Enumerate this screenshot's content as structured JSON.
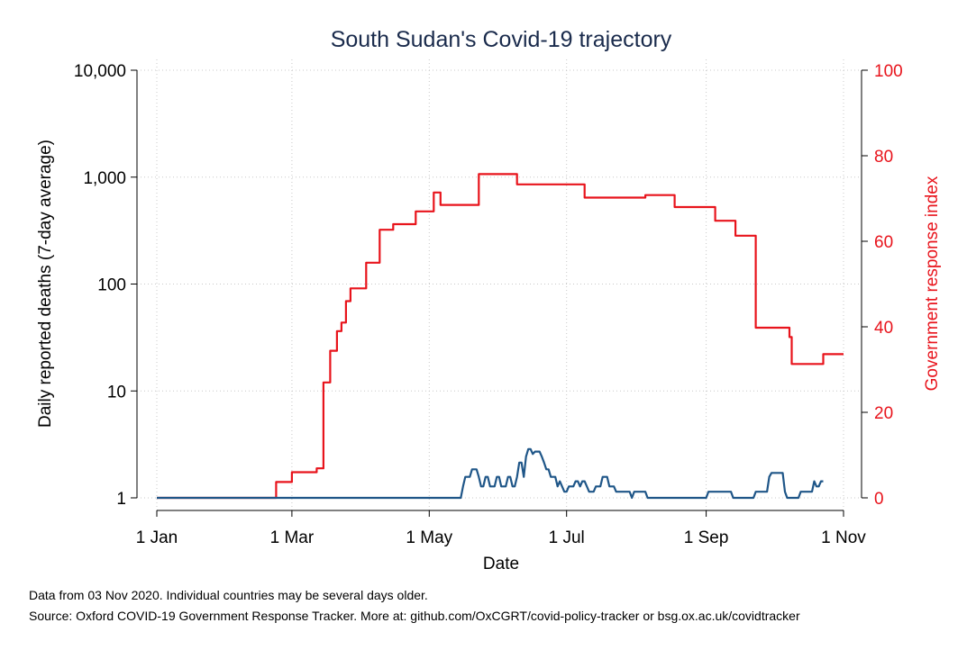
{
  "chart_data": {
    "type": "line",
    "title": "South Sudan's Covid-19 trajectory",
    "xlabel": "Date",
    "ylabel_left": "Daily reported deaths (7-day average)",
    "ylabel_right": "Government response index",
    "x_ticks": [
      {
        "label": "1 Jan",
        "day": 0
      },
      {
        "label": "1 Mar",
        "day": 60
      },
      {
        "label": "1 May",
        "day": 121
      },
      {
        "label": "1 Jul",
        "day": 182
      },
      {
        "label": "1 Sep",
        "day": 244
      },
      {
        "label": "1 Nov",
        "day": 305
      }
    ],
    "x_range_days": [
      0,
      307
    ],
    "y_left_scale": "log",
    "y_left_ticks": [
      {
        "label": "1",
        "value": 1
      },
      {
        "label": "10",
        "value": 10
      },
      {
        "label": "100",
        "value": 100
      },
      {
        "label": "1,000",
        "value": 1000
      },
      {
        "label": "10,000",
        "value": 10000
      }
    ],
    "y_left_range": [
      1,
      10000
    ],
    "y_right_ticks": [
      {
        "label": "0",
        "value": 0
      },
      {
        "label": "20",
        "value": 20
      },
      {
        "label": "40",
        "value": 40
      },
      {
        "label": "60",
        "value": 60
      },
      {
        "label": "80",
        "value": 80
      },
      {
        "label": "100",
        "value": 100
      }
    ],
    "y_right_range": [
      0,
      100
    ],
    "grid": true,
    "series": [
      {
        "axis": "right",
        "color": "#e8141c",
        "points": [
          [
            0,
            0
          ],
          [
            53,
            0
          ],
          [
            53,
            3.7
          ],
          [
            60,
            3.7
          ],
          [
            60,
            6
          ],
          [
            71,
            6
          ],
          [
            71,
            6.9
          ],
          [
            74,
            6.9
          ],
          [
            74,
            27
          ],
          [
            77,
            27
          ],
          [
            77,
            34.4
          ],
          [
            80,
            34.4
          ],
          [
            80,
            39
          ],
          [
            82,
            39
          ],
          [
            82,
            41
          ],
          [
            84,
            41
          ],
          [
            84,
            46
          ],
          [
            86,
            46
          ],
          [
            86,
            49
          ],
          [
            93,
            49
          ],
          [
            93,
            55
          ],
          [
            99,
            55
          ],
          [
            99,
            62.7
          ],
          [
            105,
            62.7
          ],
          [
            105,
            64
          ],
          [
            108,
            64
          ],
          [
            108,
            64
          ],
          [
            115,
            64
          ],
          [
            115,
            67
          ],
          [
            123,
            67
          ],
          [
            123,
            71.4
          ],
          [
            126,
            71.4
          ],
          [
            126,
            68.5
          ],
          [
            143,
            68.5
          ],
          [
            143,
            75.7
          ],
          [
            160,
            75.7
          ],
          [
            160,
            73.3
          ],
          [
            190,
            73.3
          ],
          [
            190,
            70.2
          ],
          [
            217,
            70.2
          ],
          [
            217,
            70.8
          ],
          [
            230,
            70.8
          ],
          [
            230,
            68
          ],
          [
            248,
            68
          ],
          [
            248,
            64.8
          ],
          [
            257,
            64.8
          ],
          [
            257,
            61.3
          ],
          [
            266,
            61.3
          ],
          [
            266,
            39.8
          ],
          [
            281,
            39.8
          ],
          [
            281,
            37.6
          ],
          [
            282,
            37.6
          ],
          [
            282,
            31.3
          ],
          [
            296,
            31.3
          ],
          [
            296,
            33.6
          ],
          [
            305,
            33.6
          ]
        ]
      },
      {
        "axis": "left",
        "color": "#1f5688",
        "points": [
          [
            0,
            1
          ],
          [
            135,
            1
          ],
          [
            136,
            1.28
          ],
          [
            137,
            1.57
          ],
          [
            138,
            1.57
          ],
          [
            139,
            1.57
          ],
          [
            140,
            1.85
          ],
          [
            141,
            1.85
          ],
          [
            142,
            1.85
          ],
          [
            143,
            1.57
          ],
          [
            144,
            1.28
          ],
          [
            145,
            1.28
          ],
          [
            146,
            1.57
          ],
          [
            147,
            1.57
          ],
          [
            148,
            1.28
          ],
          [
            149,
            1.28
          ],
          [
            150,
            1.28
          ],
          [
            151,
            1.57
          ],
          [
            152,
            1.57
          ],
          [
            153,
            1.28
          ],
          [
            154,
            1.28
          ],
          [
            155,
            1.28
          ],
          [
            156,
            1.57
          ],
          [
            157,
            1.57
          ],
          [
            158,
            1.28
          ],
          [
            159,
            1.28
          ],
          [
            160,
            1.57
          ],
          [
            161,
            2.14
          ],
          [
            162,
            2.14
          ],
          [
            163,
            1.57
          ],
          [
            164,
            2.43
          ],
          [
            165,
            2.86
          ],
          [
            166,
            2.86
          ],
          [
            167,
            2.57
          ],
          [
            168,
            2.71
          ],
          [
            169,
            2.71
          ],
          [
            170,
            2.71
          ],
          [
            171,
            2.43
          ],
          [
            172,
            2.14
          ],
          [
            173,
            1.85
          ],
          [
            174,
            1.85
          ],
          [
            175,
            1.57
          ],
          [
            176,
            1.57
          ],
          [
            177,
            1.57
          ],
          [
            178,
            1.28
          ],
          [
            179,
            1.43
          ],
          [
            180,
            1.28
          ],
          [
            181,
            1.14
          ],
          [
            182,
            1.14
          ],
          [
            183,
            1.28
          ],
          [
            184,
            1.28
          ],
          [
            185,
            1.28
          ],
          [
            186,
            1.43
          ],
          [
            187,
            1.43
          ],
          [
            188,
            1.28
          ],
          [
            189,
            1.43
          ],
          [
            190,
            1.43
          ],
          [
            191,
            1.28
          ],
          [
            192,
            1.14
          ],
          [
            193,
            1.14
          ],
          [
            194,
            1.14
          ],
          [
            195,
            1.28
          ],
          [
            196,
            1.28
          ],
          [
            197,
            1.28
          ],
          [
            198,
            1.57
          ],
          [
            199,
            1.57
          ],
          [
            200,
            1.57
          ],
          [
            201,
            1.28
          ],
          [
            202,
            1.28
          ],
          [
            203,
            1.28
          ],
          [
            204,
            1.14
          ],
          [
            205,
            1.14
          ],
          [
            206,
            1.14
          ],
          [
            207,
            1.14
          ],
          [
            208,
            1.14
          ],
          [
            209,
            1.14
          ],
          [
            210,
            1.14
          ],
          [
            211,
            1.0
          ],
          [
            212,
            1.14
          ],
          [
            213,
            1.14
          ],
          [
            214,
            1.14
          ],
          [
            215,
            1.14
          ],
          [
            216,
            1.14
          ],
          [
            217,
            1.14
          ],
          [
            218,
            1.0
          ],
          [
            219,
            1.0
          ],
          [
            244,
            1.0
          ],
          [
            245,
            1.14
          ],
          [
            254,
            1.14
          ],
          [
            255,
            1.14
          ],
          [
            256,
            1.0
          ],
          [
            257,
            1.0
          ],
          [
            258,
            1.0
          ],
          [
            259,
            1.0
          ],
          [
            260,
            1.0
          ],
          [
            261,
            1.0
          ],
          [
            262,
            1.0
          ],
          [
            263,
            1.0
          ],
          [
            264,
            1.0
          ],
          [
            265,
            1.0
          ],
          [
            266,
            1.14
          ],
          [
            267,
            1.14
          ],
          [
            270,
            1.14
          ],
          [
            271,
            1.14
          ],
          [
            272,
            1.57
          ],
          [
            273,
            1.71
          ],
          [
            278,
            1.71
          ],
          [
            279,
            1.14
          ],
          [
            280,
            1.0
          ],
          [
            285,
            1.0
          ],
          [
            286,
            1.14
          ],
          [
            291,
            1.14
          ],
          [
            292,
            1.43
          ],
          [
            293,
            1.28
          ],
          [
            294,
            1.28
          ],
          [
            295,
            1.43
          ],
          [
            296,
            1.43
          ]
        ]
      }
    ]
  },
  "footnotes": {
    "line1": "Data from 03 Nov 2020. Individual countries may be several days older.",
    "line2": "Source: Oxford COVID-19 Government Response Tracker. More at: github.com/OxCGRT/covid-policy-tracker or bsg.ox.ac.uk/covidtracker"
  },
  "colors": {
    "title": "#1a2b4c",
    "right_axis": "#e8141c",
    "deaths_line": "#1f5688",
    "gri_line": "#e8141c"
  }
}
